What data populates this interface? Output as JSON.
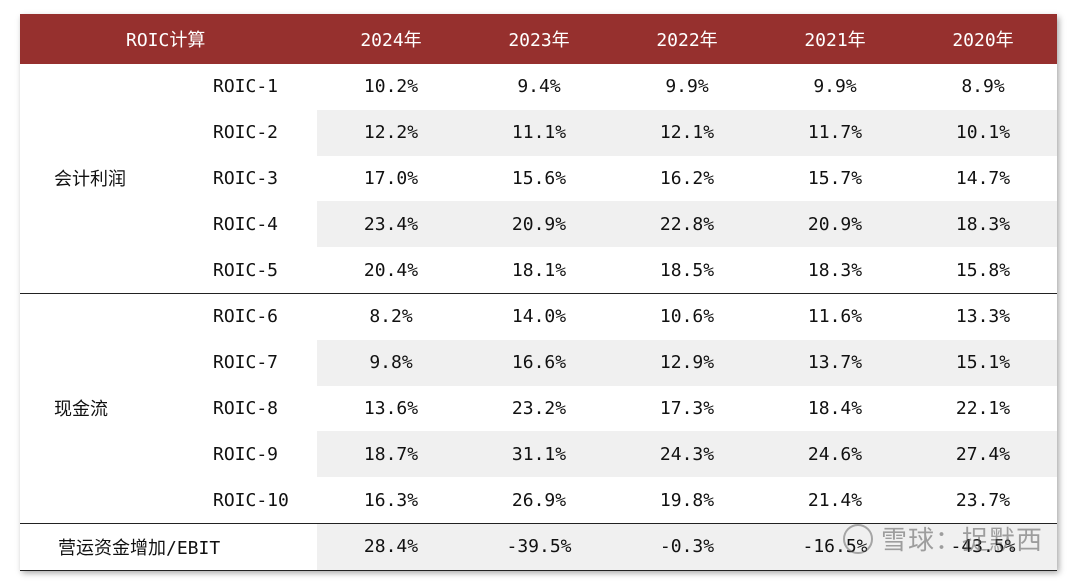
{
  "header": {
    "title": "ROIC计算",
    "years": [
      "2024年",
      "2023年",
      "2022年",
      "2021年",
      "2020年"
    ]
  },
  "groups": [
    {
      "label": "会计利润",
      "rows": [
        {
          "metric": "ROIC-1",
          "values": [
            "10.2%",
            "9.4%",
            "9.9%",
            "9.9%",
            "8.9%"
          ]
        },
        {
          "metric": "ROIC-2",
          "values": [
            "12.2%",
            "11.1%",
            "12.1%",
            "11.7%",
            "10.1%"
          ]
        },
        {
          "metric": "ROIC-3",
          "values": [
            "17.0%",
            "15.6%",
            "16.2%",
            "15.7%",
            "14.7%"
          ]
        },
        {
          "metric": "ROIC-4",
          "values": [
            "23.4%",
            "20.9%",
            "22.8%",
            "20.9%",
            "18.3%"
          ]
        },
        {
          "metric": "ROIC-5",
          "values": [
            "20.4%",
            "18.1%",
            "18.5%",
            "18.3%",
            "15.8%"
          ]
        }
      ]
    },
    {
      "label": "现金流",
      "rows": [
        {
          "metric": "ROIC-6",
          "values": [
            "8.2%",
            "14.0%",
            "10.6%",
            "11.6%",
            "13.3%"
          ]
        },
        {
          "metric": "ROIC-7",
          "values": [
            "9.8%",
            "16.6%",
            "12.9%",
            "13.7%",
            "15.1%"
          ]
        },
        {
          "metric": "ROIC-8",
          "values": [
            "13.6%",
            "23.2%",
            "17.3%",
            "18.4%",
            "22.1%"
          ]
        },
        {
          "metric": "ROIC-9",
          "values": [
            "18.7%",
            "31.1%",
            "24.3%",
            "24.6%",
            "27.4%"
          ]
        },
        {
          "metric": "ROIC-10",
          "values": [
            "16.3%",
            "26.9%",
            "19.8%",
            "21.4%",
            "23.7%"
          ]
        }
      ]
    }
  ],
  "footer_row": {
    "label": "营运资金增加/EBIT",
    "values": [
      "28.4%",
      "-39.5%",
      "-0.3%",
      "-16.5%",
      "-43.5%"
    ]
  },
  "watermark": "雪球：捉默西"
}
